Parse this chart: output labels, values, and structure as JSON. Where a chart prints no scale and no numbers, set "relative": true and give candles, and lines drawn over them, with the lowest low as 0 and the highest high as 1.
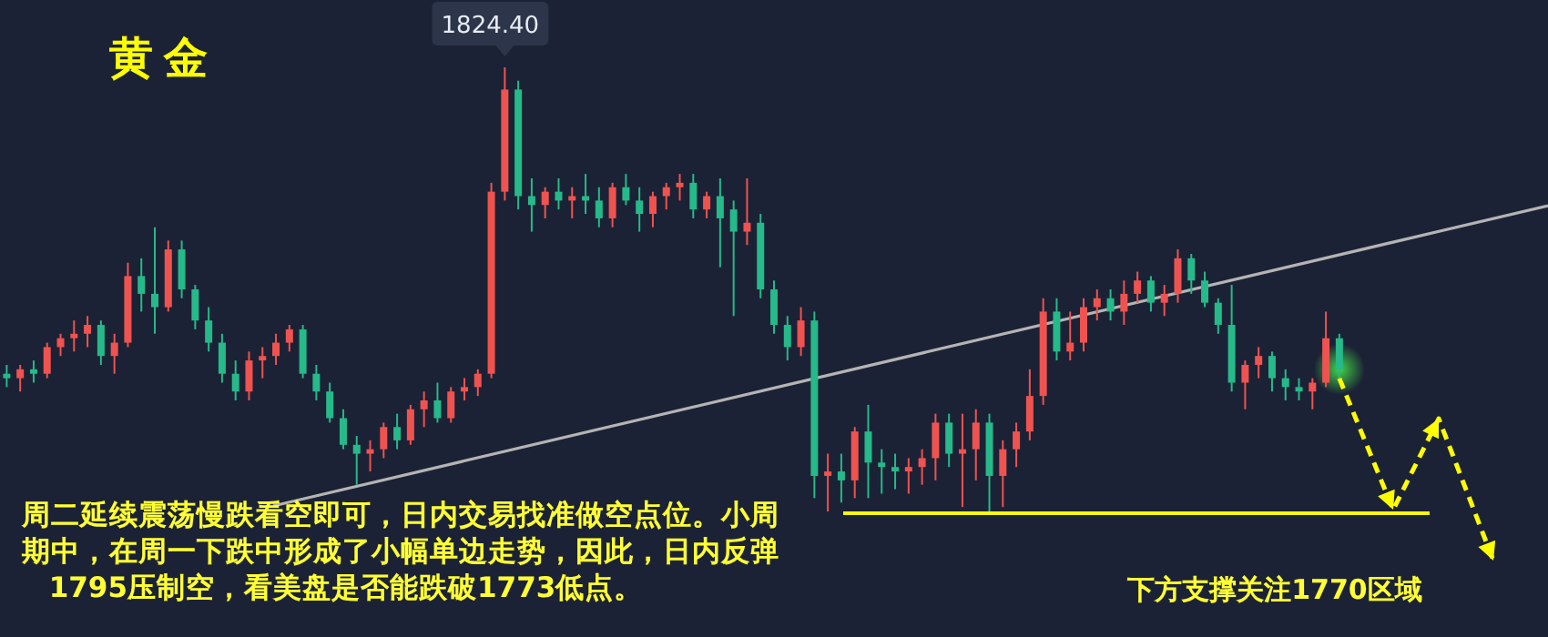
{
  "chart_data": {
    "type": "candlestick",
    "title": "黄金",
    "relative": true,
    "categories": [
      null,
      null,
      null,
      null,
      null,
      null,
      null,
      null,
      null,
      null,
      null,
      null,
      null,
      null,
      null,
      null,
      null,
      null,
      null,
      null,
      null,
      null,
      null,
      null,
      null,
      null,
      null,
      null,
      null,
      null,
      null,
      null,
      null,
      null,
      null,
      null,
      null,
      null,
      null,
      null,
      null,
      null,
      null,
      null,
      null,
      null,
      null,
      null,
      null,
      null,
      null,
      null,
      null,
      null,
      null,
      null,
      null,
      null,
      null,
      null,
      null,
      null,
      null,
      null,
      null,
      null,
      null,
      null,
      null,
      null,
      null,
      null,
      null,
      null,
      null,
      null,
      null,
      null,
      null,
      null,
      null,
      null,
      null,
      null,
      null,
      null,
      null,
      null,
      null,
      null,
      null,
      null,
      null,
      null,
      null,
      null,
      null,
      null,
      null,
      null
    ],
    "ohlc": [
      [
        0.31,
        0.33,
        0.28,
        0.3
      ],
      [
        0.3,
        0.33,
        0.27,
        0.32
      ],
      [
        0.32,
        0.34,
        0.29,
        0.31
      ],
      [
        0.31,
        0.38,
        0.3,
        0.37
      ],
      [
        0.37,
        0.4,
        0.35,
        0.39
      ],
      [
        0.39,
        0.43,
        0.36,
        0.4
      ],
      [
        0.4,
        0.44,
        0.37,
        0.42
      ],
      [
        0.42,
        0.43,
        0.33,
        0.35
      ],
      [
        0.35,
        0.4,
        0.31,
        0.38
      ],
      [
        0.38,
        0.56,
        0.37,
        0.53
      ],
      [
        0.53,
        0.57,
        0.45,
        0.49
      ],
      [
        0.49,
        0.64,
        0.4,
        0.46
      ],
      [
        0.46,
        0.61,
        0.45,
        0.59
      ],
      [
        0.59,
        0.61,
        0.48,
        0.5
      ],
      [
        0.5,
        0.51,
        0.41,
        0.43
      ],
      [
        0.43,
        0.46,
        0.36,
        0.38
      ],
      [
        0.38,
        0.4,
        0.29,
        0.31
      ],
      [
        0.31,
        0.34,
        0.25,
        0.27
      ],
      [
        0.27,
        0.36,
        0.25,
        0.34
      ],
      [
        0.34,
        0.37,
        0.3,
        0.35
      ],
      [
        0.35,
        0.4,
        0.33,
        0.38
      ],
      [
        0.38,
        0.42,
        0.36,
        0.41
      ],
      [
        0.41,
        0.42,
        0.3,
        0.31
      ],
      [
        0.31,
        0.33,
        0.25,
        0.27
      ],
      [
        0.27,
        0.29,
        0.2,
        0.21
      ],
      [
        0.21,
        0.23,
        0.14,
        0.15
      ],
      [
        0.15,
        0.17,
        0.06,
        0.13
      ],
      [
        0.13,
        0.16,
        0.09,
        0.14
      ],
      [
        0.14,
        0.2,
        0.12,
        0.19
      ],
      [
        0.19,
        0.22,
        0.14,
        0.16
      ],
      [
        0.16,
        0.24,
        0.15,
        0.23
      ],
      [
        0.23,
        0.27,
        0.19,
        0.25
      ],
      [
        0.25,
        0.29,
        0.2,
        0.21
      ],
      [
        0.21,
        0.28,
        0.2,
        0.27
      ],
      [
        0.27,
        0.3,
        0.25,
        0.28
      ],
      [
        0.28,
        0.32,
        0.26,
        0.31
      ],
      [
        0.31,
        0.74,
        0.3,
        0.72
      ],
      [
        0.72,
        1.0,
        0.7,
        0.95
      ],
      [
        0.95,
        0.97,
        0.68,
        0.71
      ],
      [
        0.71,
        0.75,
        0.63,
        0.69
      ],
      [
        0.69,
        0.73,
        0.66,
        0.72
      ],
      [
        0.72,
        0.75,
        0.68,
        0.7
      ],
      [
        0.7,
        0.73,
        0.66,
        0.71
      ],
      [
        0.71,
        0.76,
        0.67,
        0.7
      ],
      [
        0.7,
        0.73,
        0.64,
        0.66
      ],
      [
        0.66,
        0.74,
        0.64,
        0.73
      ],
      [
        0.73,
        0.76,
        0.69,
        0.7
      ],
      [
        0.7,
        0.73,
        0.63,
        0.67
      ],
      [
        0.67,
        0.72,
        0.64,
        0.71
      ],
      [
        0.71,
        0.74,
        0.68,
        0.73
      ],
      [
        0.73,
        0.76,
        0.7,
        0.74
      ],
      [
        0.74,
        0.76,
        0.66,
        0.68
      ],
      [
        0.68,
        0.72,
        0.66,
        0.71
      ],
      [
        0.71,
        0.75,
        0.55,
        0.66
      ],
      [
        0.68,
        0.7,
        0.44,
        0.63
      ],
      [
        0.63,
        0.75,
        0.6,
        0.65
      ],
      [
        0.65,
        0.67,
        0.48,
        0.5
      ],
      [
        0.5,
        0.52,
        0.4,
        0.42
      ],
      [
        0.42,
        0.44,
        0.34,
        0.37
      ],
      [
        0.37,
        0.46,
        0.35,
        0.43
      ],
      [
        0.43,
        0.45,
        0.03,
        0.08
      ],
      [
        0.08,
        0.13,
        0.0,
        0.09
      ],
      [
        0.09,
        0.13,
        0.02,
        0.07
      ],
      [
        0.07,
        0.19,
        0.03,
        0.18
      ],
      [
        0.18,
        0.24,
        0.03,
        0.11
      ],
      [
        0.11,
        0.14,
        0.04,
        0.1
      ],
      [
        0.1,
        0.13,
        0.05,
        0.09
      ],
      [
        0.09,
        0.12,
        0.04,
        0.1
      ],
      [
        0.1,
        0.14,
        0.06,
        0.12
      ],
      [
        0.12,
        0.22,
        0.07,
        0.2
      ],
      [
        0.2,
        0.22,
        0.1,
        0.13
      ],
      [
        0.13,
        0.22,
        0.01,
        0.14
      ],
      [
        0.14,
        0.23,
        0.07,
        0.2
      ],
      [
        0.2,
        0.22,
        0.0,
        0.08
      ],
      [
        0.08,
        0.16,
        0.01,
        0.14
      ],
      [
        0.14,
        0.2,
        0.1,
        0.18
      ],
      [
        0.18,
        0.32,
        0.16,
        0.26
      ],
      [
        0.26,
        0.48,
        0.24,
        0.45
      ],
      [
        0.45,
        0.48,
        0.34,
        0.36
      ],
      [
        0.36,
        0.45,
        0.34,
        0.38
      ],
      [
        0.38,
        0.48,
        0.36,
        0.46
      ],
      [
        0.46,
        0.5,
        0.43,
        0.48
      ],
      [
        0.48,
        0.5,
        0.43,
        0.45
      ],
      [
        0.45,
        0.52,
        0.42,
        0.49
      ],
      [
        0.49,
        0.54,
        0.47,
        0.52
      ],
      [
        0.52,
        0.53,
        0.45,
        0.47
      ],
      [
        0.47,
        0.51,
        0.44,
        0.49
      ],
      [
        0.49,
        0.59,
        0.47,
        0.57
      ],
      [
        0.57,
        0.58,
        0.49,
        0.52
      ],
      [
        0.52,
        0.54,
        0.46,
        0.47
      ],
      [
        0.47,
        0.48,
        0.4,
        0.42
      ],
      [
        0.42,
        0.51,
        0.27,
        0.29
      ],
      [
        0.29,
        0.34,
        0.23,
        0.33
      ],
      [
        0.33,
        0.37,
        0.3,
        0.35
      ],
      [
        0.35,
        0.36,
        0.27,
        0.3
      ],
      [
        0.3,
        0.32,
        0.25,
        0.28
      ],
      [
        0.28,
        0.3,
        0.25,
        0.27
      ],
      [
        0.27,
        0.3,
        0.23,
        0.29
      ],
      [
        0.29,
        0.45,
        0.28,
        0.39
      ],
      [
        0.39,
        0.4,
        0.3,
        0.32
      ]
    ],
    "colors": [
      "#26b98a",
      "#ef5350",
      "#26b98a",
      "#ef5350",
      "#ef5350",
      "#ef5350",
      "#ef5350",
      "#26b98a",
      "#ef5350",
      "#ef5350",
      "#26b98a",
      "#26b98a",
      "#ef5350",
      "#26b98a",
      "#26b98a",
      "#26b98a",
      "#26b98a",
      "#26b98a",
      "#ef5350",
      "#ef5350",
      "#ef5350",
      "#ef5350",
      "#26b98a",
      "#26b98a",
      "#26b98a",
      "#26b98a",
      "#26b98a",
      "#ef5350",
      "#ef5350",
      "#26b98a",
      "#ef5350",
      "#ef5350",
      "#26b98a",
      "#ef5350",
      "#ef5350",
      "#ef5350",
      "#ef5350",
      "#ef5350",
      "#26b98a",
      "#26b98a",
      "#ef5350",
      "#26b98a",
      "#ef5350",
      "#26b98a",
      "#26b98a",
      "#ef5350",
      "#26b98a",
      "#26b98a",
      "#ef5350",
      "#ef5350",
      "#ef5350",
      "#26b98a",
      "#ef5350",
      "#26b98a",
      "#26b98a",
      "#ef5350",
      "#26b98a",
      "#26b98a",
      "#26b98a",
      "#ef5350",
      "#26b98a",
      "#ef5350",
      "#26b98a",
      "#ef5350",
      "#26b98a",
      "#26b98a",
      "#26b98a",
      "#ef5350",
      "#ef5350",
      "#ef5350",
      "#26b98a",
      "#ef5350",
      "#ef5350",
      "#26b98a",
      "#ef5350",
      "#ef5350",
      "#ef5350",
      "#ef5350",
      "#26b98a",
      "#ef5350",
      "#ef5350",
      "#ef5350",
      "#26b98a",
      "#ef5350",
      "#ef5350",
      "#26b98a",
      "#ef5350",
      "#ef5350",
      "#26b98a",
      "#26b98a",
      "#26b98a",
      "#26b98a",
      "#ef5350",
      "#ef5350",
      "#26b98a",
      "#26b98a",
      "#26b98a",
      "#ef5350",
      "#ef5350",
      "#26b98a"
    ],
    "annotations": [
      "1824.40",
      "周二延续震荡慢跌看空即可，日内交易找准做空点位。小周期中，在周一下跌中形成了小幅单边走势，因此，日内反弹1795压制空，看美盘是否能跌破1773低点。",
      "下方支撑关注1770区域"
    ]
  }
}
